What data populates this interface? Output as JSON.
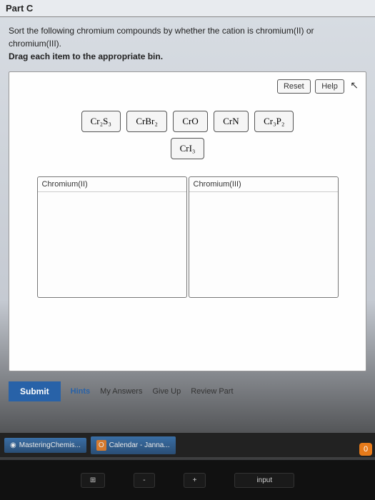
{
  "part": "Part C",
  "instructions": {
    "line1": "Sort the following chromium compounds by whether the cation is chromium(II) or chromium(III).",
    "line2": "Drag each item to the appropriate bin."
  },
  "buttons": {
    "reset": "Reset",
    "help": "Help"
  },
  "compounds": {
    "c1": "Cr₂S₃",
    "c2": "CrBr₂",
    "c3": "CrO",
    "c4": "CrN",
    "c5": "Cr₃P₂",
    "c6": "CrI₃"
  },
  "bins": {
    "left": "Chromium(II)",
    "right": "Chromium(III)"
  },
  "actions": {
    "submit": "Submit",
    "hints": "Hints",
    "myanswers": "My Answers",
    "giveup": "Give Up",
    "review": "Review Part"
  },
  "taskbar": {
    "app1": "MasteringChemis...",
    "app2": "Calendar - Janna..."
  },
  "notif_count": "0",
  "keyboard": {
    "k1": "⊞",
    "k2": "-",
    "k3": "+",
    "k4": "input"
  }
}
